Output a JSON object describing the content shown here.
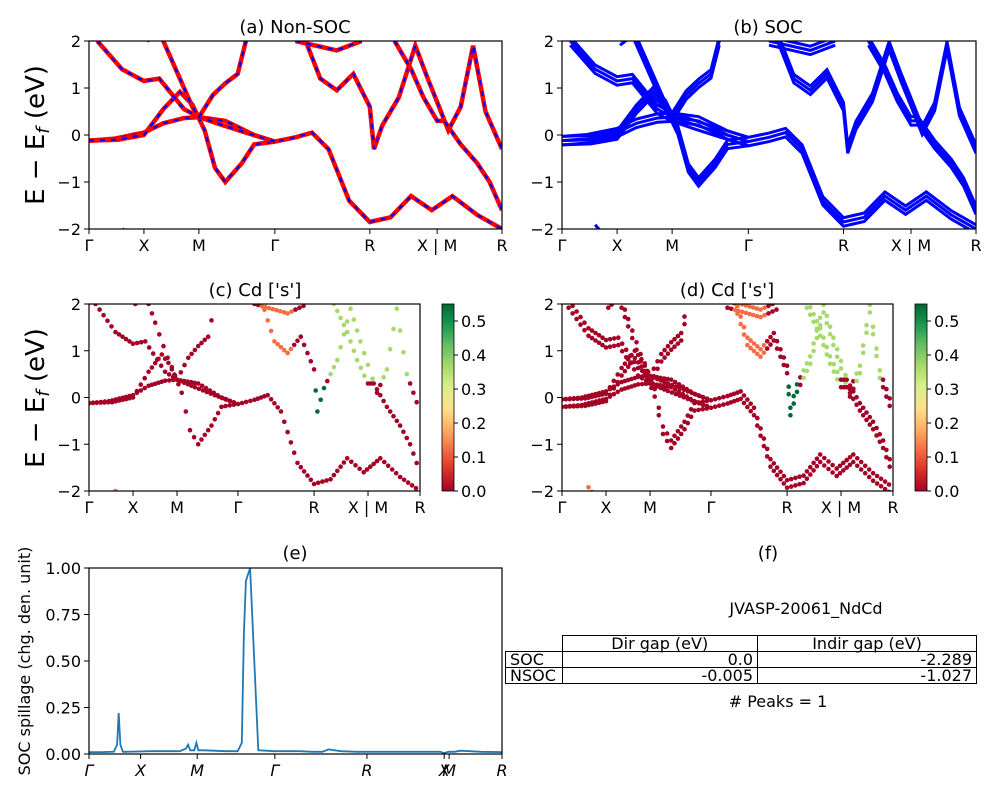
{
  "colors": {
    "nonsoc_red": "#ff0000",
    "band_blue": "#0000ff",
    "spillage_line": "#1f77b4",
    "cmap": [
      "#a50026",
      "#d73027",
      "#f46d43",
      "#fdae61",
      "#fee08b",
      "#d9ef8b",
      "#a6d96a",
      "#66bd63",
      "#1a9850",
      "#006837"
    ]
  },
  "band_ylabel": "E − E_f (eV)",
  "chart_data": [
    {
      "id": "a",
      "type": "line",
      "title": "(a) Non-SOC",
      "xticks": [
        "Γ",
        "X",
        "M",
        "Γ",
        "R",
        "X | M",
        "R"
      ],
      "ylim": [
        -2,
        2
      ],
      "yticks": [
        "−2",
        "−1",
        "0",
        "1",
        "2"
      ],
      "series": [
        {
          "style": "red solid line with blue dashed overlay"
        }
      ]
    },
    {
      "id": "b",
      "type": "line",
      "title": "(b) SOC",
      "xticks": [
        "Γ",
        "X",
        "M",
        "Γ",
        "R",
        "X | M",
        "R"
      ],
      "ylim": [
        -2,
        2
      ],
      "yticks": [
        "−2",
        "−1",
        "0",
        "1",
        "2"
      ]
    },
    {
      "id": "c",
      "type": "scatter",
      "title": "(c)  Cd ['s']",
      "xticks": [
        "Γ",
        "X",
        "M",
        "Γ",
        "R",
        "X | M",
        "R"
      ],
      "ylim": [
        -2,
        2
      ],
      "yticks": [
        "−2",
        "−1",
        "0",
        "1",
        "2"
      ],
      "colorbar": {
        "range": [
          0,
          0.55
        ],
        "ticks": [
          "0.0",
          "0.1",
          "0.2",
          "0.3",
          "0.4",
          "0.5"
        ]
      }
    },
    {
      "id": "d",
      "type": "scatter",
      "title": "(d) Cd ['s']",
      "xticks": [
        "Γ",
        "X",
        "M",
        "Γ",
        "R",
        "X | M",
        "R"
      ],
      "ylim": [
        -2,
        2
      ],
      "yticks": [
        "−2",
        "−1",
        "0",
        "1",
        "2"
      ],
      "colorbar": {
        "range": [
          0,
          0.55
        ],
        "ticks": [
          "0.0",
          "0.1",
          "0.2",
          "0.3",
          "0.4",
          "0.5"
        ]
      }
    },
    {
      "id": "e",
      "type": "line",
      "title": "(e)",
      "ylabel": "SOC spillage (chg. den. unit)",
      "ylim": [
        0,
        1
      ],
      "yticks": [
        "0.00",
        "0.25",
        "0.50",
        "0.75",
        "1.00"
      ],
      "xticks": [
        "Γ",
        "X",
        "M",
        "Γ",
        "R",
        "X",
        "M",
        "R"
      ],
      "series": [
        {
          "x": [
            0,
            0.03,
            0.06,
            0.068,
            0.072,
            0.076,
            0.082,
            0.09,
            0.15,
            0.22,
            0.235,
            0.24,
            0.245,
            0.255,
            0.26,
            0.265,
            0.28,
            0.33,
            0.36,
            0.37,
            0.375,
            0.38,
            0.39,
            0.41,
            0.45,
            0.51,
            0.54,
            0.55,
            0.5555,
            0.56,
            0.565,
            0.58,
            0.61,
            0.65,
            0.7,
            0.75,
            0.8,
            0.85,
            0.86,
            0.87,
            0.885,
            0.9,
            0.95,
            1.0
          ],
          "y": [
            0.01,
            0.01,
            0.012,
            0.05,
            0.22,
            0.05,
            0.012,
            0.012,
            0.015,
            0.015,
            0.03,
            0.05,
            0.02,
            0.02,
            0.06,
            0.02,
            0.02,
            0.015,
            0.015,
            0.06,
            0.65,
            0.93,
            1.0,
            0.02,
            0.015,
            0.015,
            0.012,
            0.012,
            0.012,
            0.012,
            0.012,
            0.025,
            0.015,
            0.012,
            0.012,
            0.012,
            0.012,
            0.012,
            0.005,
            0.012,
            0.012,
            0.018,
            0.012,
            0.01
          ]
        }
      ]
    },
    {
      "id": "f",
      "type": "table",
      "title": "(f)",
      "subtitle": "JVASP-20061_NdCd",
      "columns": [
        "Dir gap (eV)",
        "Indir gap (eV)"
      ],
      "rows": [
        {
          "label": "SOC",
          "dir": "0.0",
          "indir": "-2.289"
        },
        {
          "label": "NSOC",
          "dir": "-0.005",
          "indir": "-1.027"
        }
      ],
      "footer": "# Peaks = 1"
    }
  ]
}
